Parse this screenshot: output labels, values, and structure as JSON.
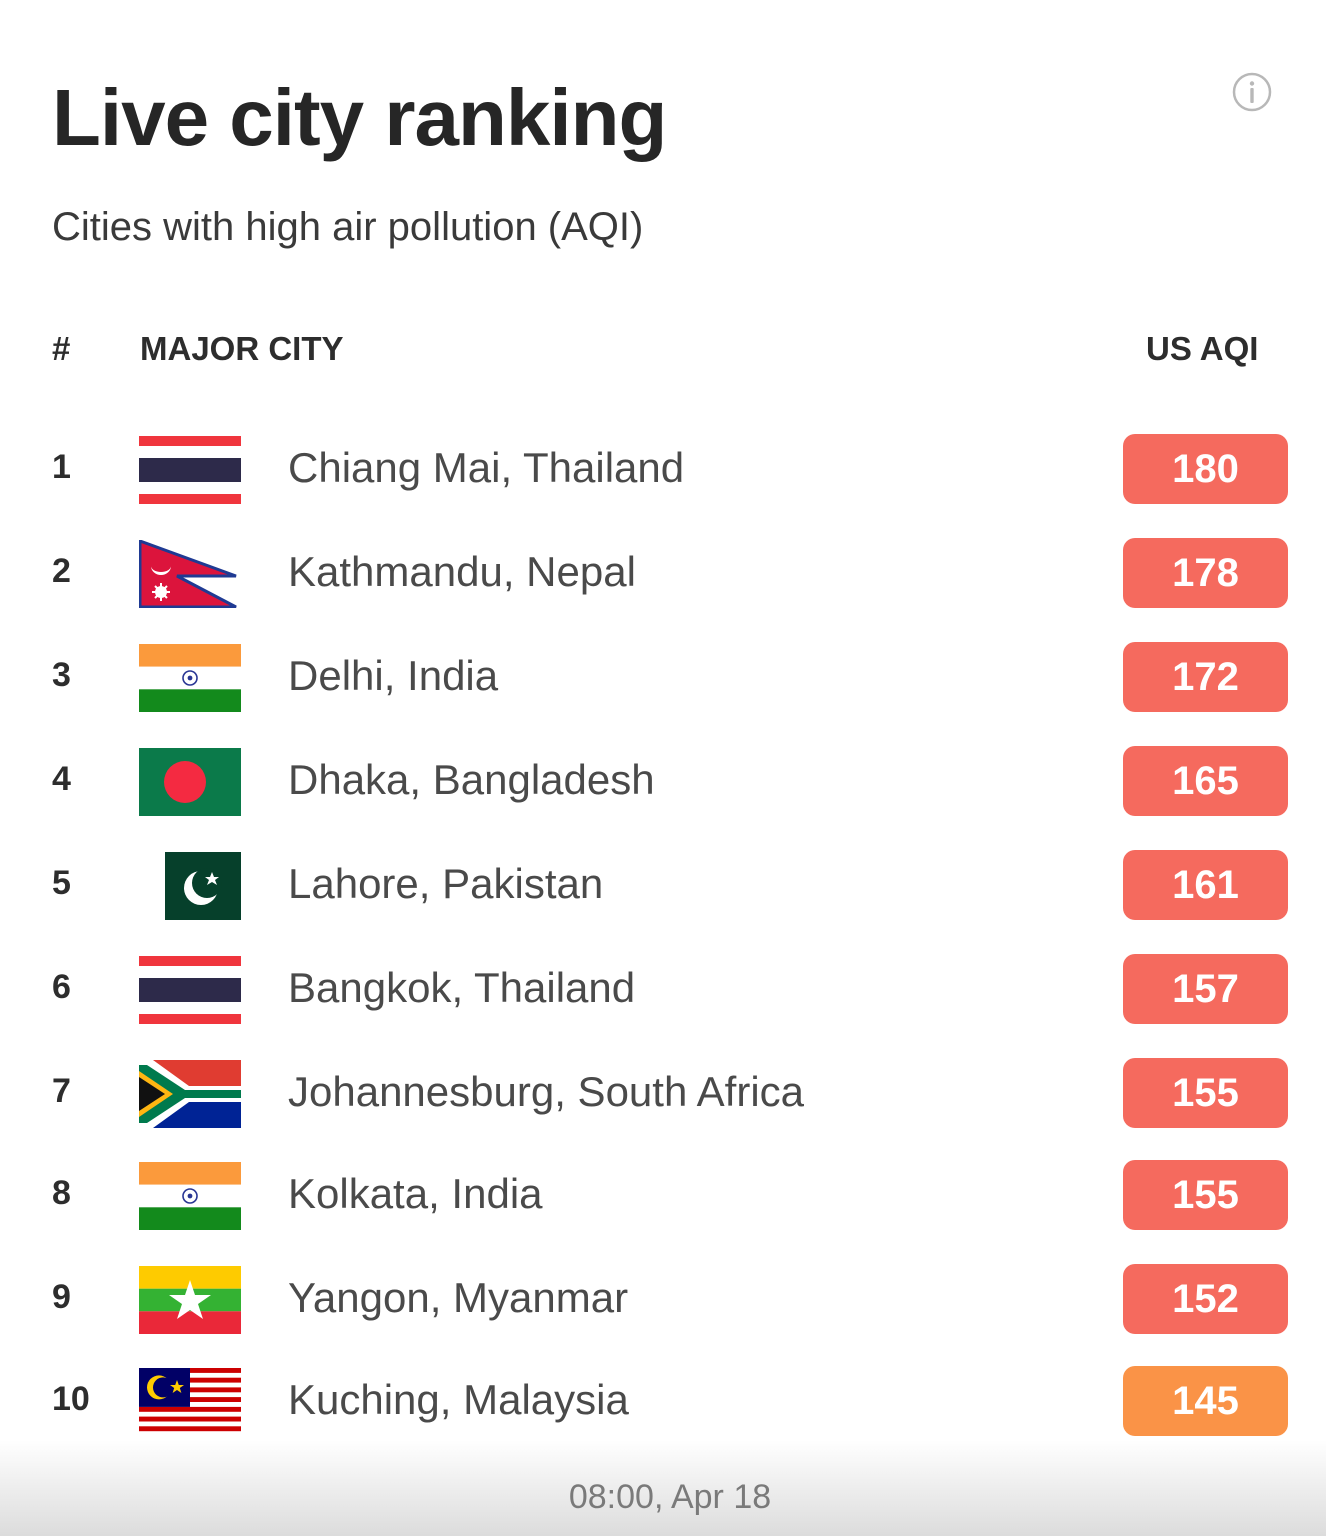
{
  "header": {
    "title": "Live city ranking",
    "subtitle": "Cities with high air pollution (AQI)",
    "info_icon": "info-circle-icon"
  },
  "table": {
    "columns": {
      "rank": "#",
      "city": "MAJOR CITY",
      "aqi": "US AQI"
    },
    "rows": [
      {
        "rank": "1",
        "city": "Chiang Mai, Thailand",
        "aqi": "180",
        "flag": "thailand-flag-icon",
        "color": "#f56a5e"
      },
      {
        "rank": "2",
        "city": "Kathmandu, Nepal",
        "aqi": "178",
        "flag": "nepal-flag-icon",
        "color": "#f56a5e"
      },
      {
        "rank": "3",
        "city": "Delhi, India",
        "aqi": "172",
        "flag": "india-flag-icon",
        "color": "#f56a5e"
      },
      {
        "rank": "4",
        "city": "Dhaka, Bangladesh",
        "aqi": "165",
        "flag": "bangladesh-flag-icon",
        "color": "#f56a5e"
      },
      {
        "rank": "5",
        "city": "Lahore, Pakistan",
        "aqi": "161",
        "flag": "pakistan-flag-icon",
        "color": "#f56a5e"
      },
      {
        "rank": "6",
        "city": "Bangkok, Thailand",
        "aqi": "157",
        "flag": "thailand-flag-icon",
        "color": "#f56a5e"
      },
      {
        "rank": "7",
        "city": "Johannesburg, South Africa",
        "aqi": "155",
        "flag": "south-africa-flag-icon",
        "color": "#f56a5e"
      },
      {
        "rank": "8",
        "city": "Kolkata, India",
        "aqi": "155",
        "flag": "india-flag-icon",
        "color": "#f56a5e"
      },
      {
        "rank": "9",
        "city": "Yangon, Myanmar",
        "aqi": "152",
        "flag": "myanmar-flag-icon",
        "color": "#f56a5e"
      },
      {
        "rank": "10",
        "city": "Kuching, Malaysia",
        "aqi": "145",
        "flag": "malaysia-flag-icon",
        "color": "#fa9347"
      }
    ]
  },
  "footer": {
    "timestamp": "08:00, Apr 18"
  }
}
